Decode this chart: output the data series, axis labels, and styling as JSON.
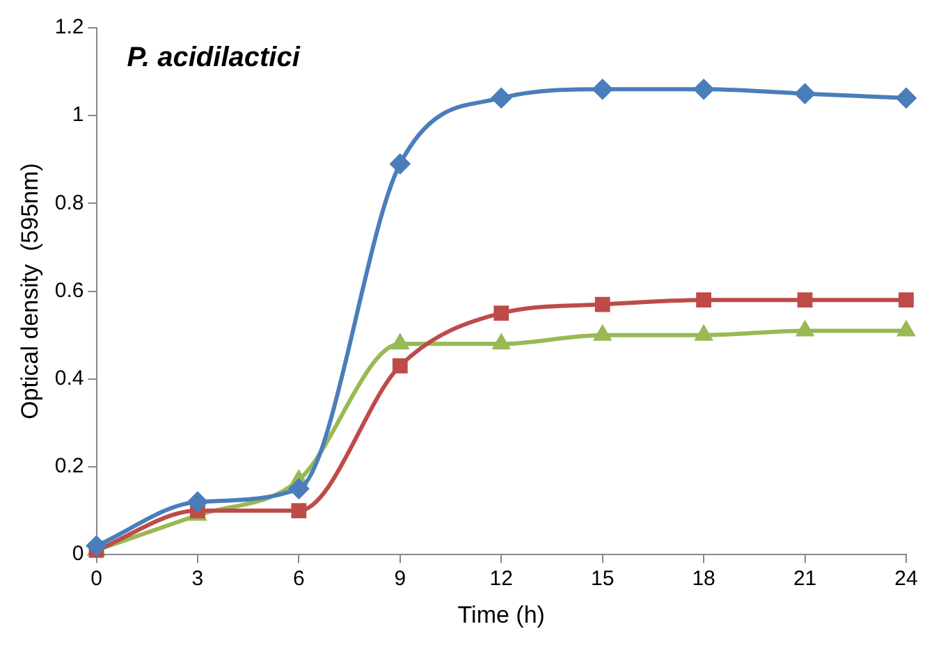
{
  "chart_data": {
    "type": "line",
    "title": "P. acidilactici",
    "xlabel": "Time (h)",
    "ylabel": "Optical density  (595nm)",
    "x": [
      0,
      3,
      6,
      9,
      12,
      15,
      18,
      21,
      24
    ],
    "series": [
      {
        "color": "#4a7ebb",
        "marker": "diamond",
        "values": [
          0.02,
          0.12,
          0.15,
          0.89,
          1.04,
          1.06,
          1.06,
          1.05,
          1.04
        ]
      },
      {
        "color": "#be4b48",
        "marker": "square",
        "values": [
          0.01,
          0.1,
          0.1,
          0.43,
          0.55,
          0.57,
          0.58,
          0.58,
          0.58
        ]
      },
      {
        "color": "#98b954",
        "marker": "triangle",
        "values": [
          0.01,
          0.09,
          0.17,
          0.48,
          0.48,
          0.5,
          0.5,
          0.51,
          0.51
        ]
      }
    ],
    "xlim": [
      0,
      24
    ],
    "xticks": [
      0,
      3,
      6,
      9,
      12,
      15,
      18,
      21,
      24
    ],
    "ylim": [
      0,
      1.2
    ],
    "yticks": [
      0,
      0.2,
      0.4,
      0.6,
      0.8,
      1,
      1.2
    ],
    "grid": false,
    "legend": false,
    "line_style": "solid"
  }
}
